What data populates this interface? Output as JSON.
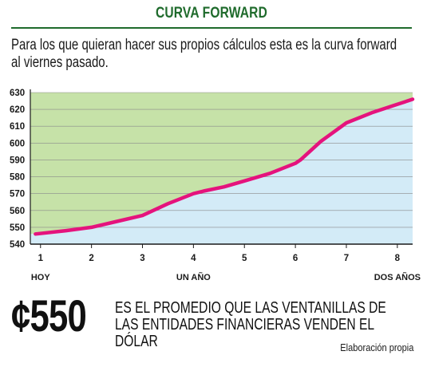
{
  "header": {
    "title": "CURVA FORWARD",
    "subtitle_line1": "Para los que quieran hacer sus propios cálculos esta es la curva forward",
    "subtitle_line2": "al viernes pasado."
  },
  "chart_data": {
    "type": "line",
    "title": "",
    "xlabel": "",
    "ylabel": "",
    "x": [
      0.9,
      1.5,
      2.0,
      2.5,
      3.0,
      3.5,
      4.0,
      4.2,
      4.6,
      5.0,
      5.5,
      6.0,
      6.1,
      6.5,
      7.0,
      7.5,
      8.0,
      8.3
    ],
    "y": [
      546,
      548,
      550,
      553.5,
      557,
      564,
      570,
      571.5,
      574,
      577.5,
      582,
      588,
      590,
      601,
      612,
      618,
      623,
      626
    ],
    "xlim": [
      0.8,
      8.3
    ],
    "ylim": [
      540,
      630
    ],
    "x_ticks": [
      "1",
      "2",
      "3",
      "4",
      "5",
      "6",
      "7",
      "8"
    ],
    "x_tick_values": [
      1,
      2,
      3,
      4,
      5,
      6,
      7,
      8
    ],
    "y_ticks": [
      "540",
      "550",
      "560",
      "570",
      "580",
      "590",
      "600",
      "610",
      "620",
      "630"
    ],
    "y_tick_values": [
      540,
      550,
      560,
      570,
      580,
      590,
      600,
      610,
      620,
      630
    ],
    "category_labels": [
      {
        "x": 1,
        "text": "HOY"
      },
      {
        "x": 4,
        "text": "UN AÑO"
      },
      {
        "x": 8,
        "text": "DOS AÑOS"
      }
    ],
    "grid": true,
    "colors": {
      "line": "#e5137d",
      "area_above": "#c6e2a8",
      "area_below": "#d3ebf7",
      "grid": "#8a8a8a",
      "axis": "#1a1a1a"
    }
  },
  "footer": {
    "big_value": "¢550",
    "description_line1": "ES EL PROMEDIO QUE LAS VENTANILLAS DE",
    "description_line2": "LAS ENTIDADES FINANCIERAS VENDEN EL DÓLAR",
    "source": "Elaboración propia"
  }
}
